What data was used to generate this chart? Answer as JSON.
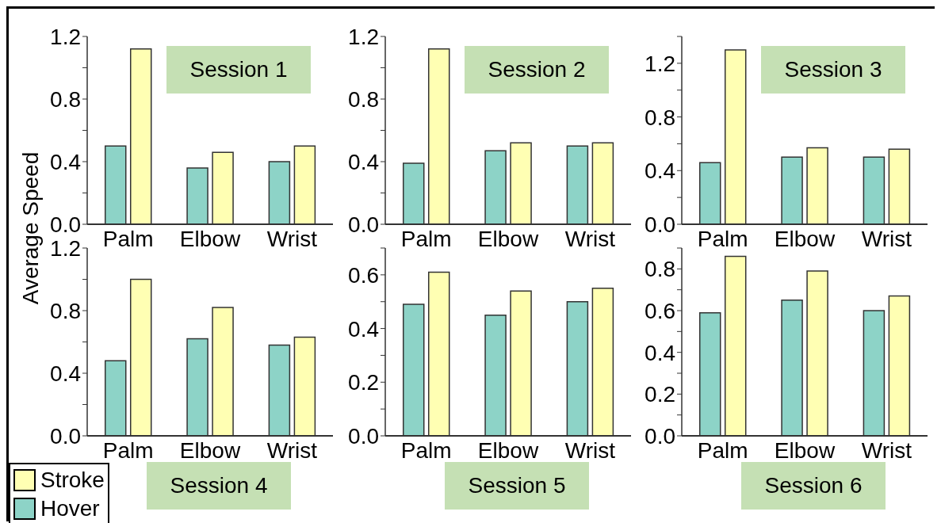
{
  "chart_data": [
    {
      "type": "bar",
      "title": "Session 1",
      "ylabel": "Average Speed",
      "categories": [
        "Palm",
        "Elbow",
        "Wrist"
      ],
      "series": [
        {
          "color": "#8dd3c7",
          "values": [
            0.5,
            0.36,
            0.4
          ]
        },
        {
          "color": "#ffffb3",
          "values": [
            1.12,
            0.46,
            0.5
          ]
        }
      ],
      "ylim": [
        0,
        1.2
      ],
      "yticks": [
        {
          "value": 0,
          "label": "0.0"
        },
        {
          "value": 0.2,
          "label": null
        },
        {
          "value": 0.4,
          "label": "0.4"
        },
        {
          "value": 0.6,
          "label": null
        },
        {
          "value": 0.8,
          "label": "0.8"
        },
        {
          "value": 1.0,
          "label": null
        },
        {
          "value": 1.2,
          "label": "1.2"
        }
      ],
      "grid": false
    },
    {
      "type": "bar",
      "title": "Session 2",
      "categories": [
        "Palm",
        "Elbow",
        "Wrist"
      ],
      "series": [
        {
          "color": "#8dd3c7",
          "values": [
            0.39,
            0.47,
            0.5
          ]
        },
        {
          "color": "#ffffb3",
          "values": [
            1.12,
            0.52,
            0.52
          ]
        }
      ],
      "ylim": [
        0,
        1.2
      ],
      "yticks": [
        {
          "value": 0,
          "label": "0.0"
        },
        {
          "value": 0.2,
          "label": null
        },
        {
          "value": 0.4,
          "label": "0.4"
        },
        {
          "value": 0.6,
          "label": null
        },
        {
          "value": 0.8,
          "label": "0.8"
        },
        {
          "value": 1.0,
          "label": null
        },
        {
          "value": 1.2,
          "label": "1.2"
        }
      ],
      "grid": false
    },
    {
      "type": "bar",
      "title": "Session 3",
      "categories": [
        "Palm",
        "Elbow",
        "Wrist"
      ],
      "series": [
        {
          "color": "#8dd3c7",
          "values": [
            0.46,
            0.5,
            0.5
          ]
        },
        {
          "color": "#ffffb3",
          "values": [
            1.3,
            0.57,
            0.56
          ]
        }
      ],
      "ylim": [
        0,
        1.4
      ],
      "yticks": [
        {
          "value": 0,
          "label": "0.0"
        },
        {
          "value": 0.2,
          "label": null
        },
        {
          "value": 0.4,
          "label": "0.4"
        },
        {
          "value": 0.6,
          "label": null
        },
        {
          "value": 0.8,
          "label": "0.8"
        },
        {
          "value": 1.0,
          "label": null
        },
        {
          "value": 1.2,
          "label": "1.2"
        },
        {
          "value": 1.4,
          "label": null
        }
      ],
      "grid": false
    },
    {
      "type": "bar",
      "title": "Session 4",
      "categories": [
        "Palm",
        "Elbow",
        "Wrist"
      ],
      "legend": "bottom left",
      "series": [
        {
          "name": "Hover",
          "color": "#8dd3c7",
          "values": [
            0.48,
            0.62,
            0.58
          ]
        },
        {
          "name": "Stroke",
          "color": "#ffffb3",
          "values": [
            1.0,
            0.82,
            0.63
          ]
        }
      ],
      "ylim": [
        0,
        1.2
      ],
      "yticks": [
        {
          "value": 0,
          "label": "0.0"
        },
        {
          "value": 0.2,
          "label": null
        },
        {
          "value": 0.4,
          "label": "0.4"
        },
        {
          "value": 0.6,
          "label": null
        },
        {
          "value": 0.8,
          "label": "0.8"
        },
        {
          "value": 1.0,
          "label": null
        },
        {
          "value": 1.2,
          "label": "1.2"
        }
      ],
      "grid": false
    },
    {
      "type": "bar",
      "title": "Session 5",
      "categories": [
        "Palm",
        "Elbow",
        "Wrist"
      ],
      "series": [
        {
          "color": "#8dd3c7",
          "values": [
            0.49,
            0.45,
            0.5
          ]
        },
        {
          "color": "#ffffb3",
          "values": [
            0.61,
            0.54,
            0.55
          ]
        }
      ],
      "ylim": [
        0,
        0.7
      ],
      "yticks": [
        {
          "value": 0,
          "label": "0.0"
        },
        {
          "value": 0.1,
          "label": null
        },
        {
          "value": 0.2,
          "label": "0.2"
        },
        {
          "value": 0.3,
          "label": null
        },
        {
          "value": 0.4,
          "label": "0.4"
        },
        {
          "value": 0.5,
          "label": null
        },
        {
          "value": 0.6,
          "label": "0.6"
        },
        {
          "value": 0.7,
          "label": null
        }
      ],
      "grid": false
    },
    {
      "type": "bar",
      "title": "Session 6",
      "categories": [
        "Palm",
        "Elbow",
        "Wrist"
      ],
      "series": [
        {
          "color": "#8dd3c7",
          "values": [
            0.59,
            0.65,
            0.6
          ]
        },
        {
          "color": "#ffffb3",
          "values": [
            0.86,
            0.79,
            0.67
          ]
        }
      ],
      "ylim": [
        0,
        0.9
      ],
      "yticks": [
        {
          "value": 0,
          "label": "0.0"
        },
        {
          "value": 0.1,
          "label": null
        },
        {
          "value": 0.2,
          "label": "0.2"
        },
        {
          "value": 0.3,
          "label": null
        },
        {
          "value": 0.4,
          "label": "0.4"
        },
        {
          "value": 0.5,
          "label": null
        },
        {
          "value": 0.6,
          "label": "0.6"
        },
        {
          "value": 0.7,
          "label": null
        },
        {
          "value": 0.8,
          "label": "0.8"
        },
        {
          "value": 0.9,
          "label": null
        }
      ],
      "grid": false
    }
  ]
}
